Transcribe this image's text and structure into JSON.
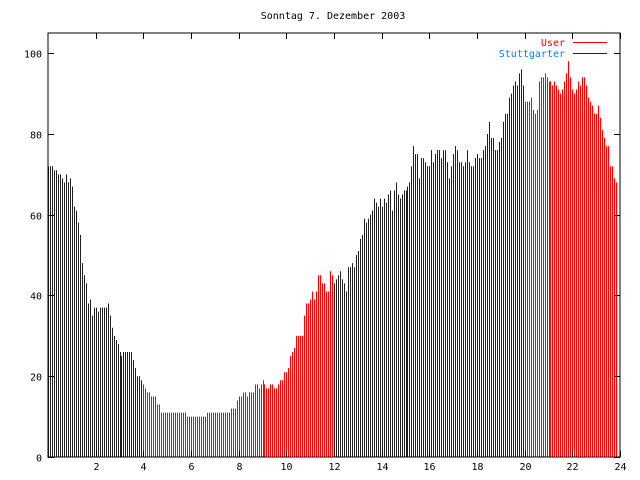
{
  "chart_data": {
    "type": "bar",
    "style": "impulses",
    "title": "Sonntag 7. Dezember 2003",
    "xlabel": "",
    "ylabel": "",
    "xlim": [
      0,
      24
    ],
    "ylim": [
      0,
      105
    ],
    "x_ticks": [
      "2",
      "4",
      "6",
      "8",
      "10",
      "12",
      "14",
      "16",
      "18",
      "20",
      "22",
      "24"
    ],
    "x_tick_values": [
      2,
      4,
      6,
      8,
      10,
      12,
      14,
      16,
      18,
      20,
      22,
      24
    ],
    "y_ticks": [
      "0",
      "20",
      "40",
      "60",
      "80",
      "100"
    ],
    "y_tick_values": [
      0,
      20,
      40,
      60,
      80,
      100
    ],
    "interval_minutes": 5,
    "legend": [
      {
        "name": "User",
        "color": "#ff0000"
      },
      {
        "name": "Stuttgarter",
        "color": "#0080ff"
      }
    ],
    "legend_position": "top-right",
    "user_hours": [
      [
        4,
        12
      ],
      [
        20,
        24.1
      ]
    ],
    "colors": {
      "user": "#ff0000",
      "other": "#202020",
      "axis": "#000000"
    },
    "values": [
      72,
      72,
      72,
      71,
      71,
      70,
      70,
      69,
      68,
      70,
      68,
      69,
      67,
      62,
      61,
      58,
      55,
      48,
      45,
      43,
      38,
      39,
      35,
      37,
      37,
      36,
      37,
      37,
      37,
      37,
      38,
      35,
      32,
      30,
      29,
      28,
      26,
      25,
      26,
      26,
      26,
      26,
      26,
      24,
      22,
      20,
      20,
      19,
      18,
      17,
      16,
      16,
      15,
      15,
      15,
      13,
      13,
      11,
      11,
      11,
      11,
      11,
      11,
      11,
      11,
      11,
      11,
      11,
      11,
      11,
      10,
      10,
      10,
      10,
      10,
      10,
      10,
      10,
      10,
      10,
      11,
      11,
      11,
      11,
      11,
      11,
      11,
      11,
      11,
      11,
      11,
      11,
      12,
      12,
      12,
      14,
      15,
      15,
      16,
      16,
      15,
      16,
      16,
      16,
      18,
      18,
      17,
      18,
      19,
      18,
      17,
      17,
      18,
      18,
      17,
      17,
      18,
      19,
      19,
      21,
      21,
      22,
      25,
      26,
      27,
      30,
      30,
      30,
      30,
      35,
      38,
      38,
      39,
      41,
      39,
      41,
      45,
      45,
      43,
      43,
      41,
      41,
      46,
      45,
      43,
      44,
      45,
      46,
      44,
      43,
      41,
      47,
      47,
      48,
      47,
      50,
      51,
      54,
      55,
      59,
      58,
      59,
      60,
      61,
      64,
      63,
      62,
      64,
      62,
      64,
      63,
      65,
      66,
      61,
      66,
      68,
      65,
      64,
      65,
      66,
      66,
      67,
      68,
      72,
      77,
      75,
      75,
      69,
      74,
      74,
      73,
      72,
      72,
      76,
      73,
      75,
      76,
      76,
      74,
      76,
      76,
      73,
      69,
      72,
      75,
      77,
      76,
      73,
      73,
      72,
      73,
      76,
      73,
      72,
      72,
      74,
      75,
      74,
      74,
      76,
      77,
      80,
      83,
      79,
      79,
      76,
      76,
      78,
      79,
      83,
      85,
      85,
      89,
      90,
      92,
      93,
      92,
      95,
      96,
      92,
      88,
      88,
      88,
      89,
      86,
      85,
      86,
      93,
      94,
      94,
      95,
      94,
      93,
      93,
      92,
      93,
      92,
      91,
      90,
      91,
      93,
      95,
      98,
      94,
      91,
      90,
      91,
      93,
      92,
      94,
      94,
      92,
      89,
      88,
      87,
      85,
      85,
      87,
      84,
      81,
      79,
      77,
      77,
      72,
      72,
      69,
      68
    ]
  }
}
